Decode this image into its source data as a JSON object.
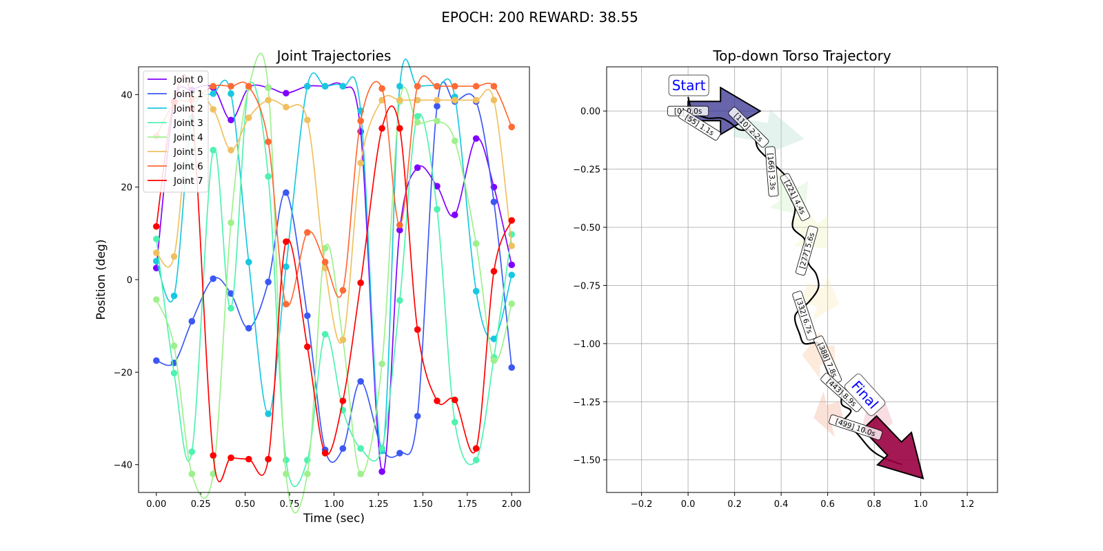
{
  "suptitle": "EPOCH: 200 REWARD:  38.55",
  "chart_data": [
    {
      "type": "line",
      "title": "Joint Trajectories",
      "xlabel": "Time (sec)",
      "ylabel": "Position (deg)",
      "xlim": [
        -0.1,
        2.1
      ],
      "ylim": [
        -46,
        46
      ],
      "xticks": [
        0.0,
        0.25,
        0.5,
        0.75,
        1.0,
        1.25,
        1.5,
        1.75,
        2.0
      ],
      "xtick_labels": [
        "0.00",
        "0.25",
        "0.50",
        "0.75",
        "1.00",
        "1.25",
        "1.50",
        "1.75",
        "2.00"
      ],
      "yticks": [
        -40,
        -20,
        0,
        20,
        40
      ],
      "ytick_labels": [
        "−40",
        "−20",
        "0",
        "20",
        "40"
      ],
      "grid": false,
      "legend_position": "top-left",
      "x": [
        0.0,
        0.1,
        0.2,
        0.32,
        0.42,
        0.52,
        0.63,
        0.73,
        0.85,
        0.95,
        1.05,
        1.15,
        1.27,
        1.37,
        1.47,
        1.58,
        1.68,
        1.8,
        1.9,
        2.0
      ],
      "series": [
        {
          "name": "Joint 0",
          "color": "#8000ff",
          "values": [
            2.5,
            38.0,
            41.0,
            41.5,
            34.5,
            41.5,
            41.5,
            40.3,
            41.8,
            41.8,
            41.8,
            32.0,
            -41.5,
            10.7,
            24.2,
            20.2,
            14.0,
            30.5,
            20.0,
            3.2
          ]
        },
        {
          "name": "Joint 1",
          "color": "#3b58f5",
          "values": [
            -17.5,
            -18.0,
            -9.0,
            0.2,
            -3.0,
            -10.5,
            -0.5,
            18.8,
            -7.8,
            -36.8,
            -36.5,
            -22.0,
            -36.5,
            -37.5,
            -29.5,
            37.5,
            38.5,
            38.5,
            16.8,
            -19.0
          ]
        },
        {
          "name": "Joint 2",
          "color": "#18c8e0",
          "values": [
            4.0,
            -3.5,
            35.0,
            40.2,
            40.2,
            3.8,
            -29.0,
            2.8,
            41.8,
            41.8,
            41.8,
            36.5,
            -37.0,
            41.8,
            41.8,
            41.8,
            39.5,
            -2.5,
            -12.8,
            1.0
          ]
        },
        {
          "name": "Joint 3",
          "color": "#4ff2b0",
          "values": [
            8.8,
            -20.2,
            -37.2,
            28.0,
            -6.2,
            41.5,
            22.3,
            -39.0,
            -39.0,
            -11.8,
            -28.2,
            -36.5,
            -36.5,
            -4.5,
            35.3,
            15.2,
            -30.8,
            -39.0,
            -16.8,
            9.8
          ]
        },
        {
          "name": "Joint 4",
          "color": "#9ef08c",
          "values": [
            -4.3,
            -14.3,
            -42.0,
            -42.0,
            12.3,
            41.5,
            41.5,
            -42.0,
            -42.0,
            6.8,
            -13.0,
            -42.0,
            -18.2,
            38.5,
            34.0,
            34.3,
            30.0,
            7.8,
            -17.5,
            -5.2
          ]
        },
        {
          "name": "Joint 5",
          "color": "#f0c060",
          "values": [
            5.8,
            5.0,
            38.8,
            36.8,
            28.0,
            35.0,
            38.8,
            37.3,
            34.5,
            2.5,
            -13.0,
            25.2,
            38.8,
            38.8,
            38.8,
            38.8,
            38.8,
            38.8,
            38.8,
            7.3
          ]
        },
        {
          "name": "Joint 6",
          "color": "#ff6a35",
          "values": [
            31.0,
            38.0,
            38.8,
            41.8,
            41.8,
            41.8,
            29.8,
            -5.3,
            10.2,
            3.8,
            -2.3,
            34.3,
            41.3,
            11.8,
            41.8,
            41.8,
            41.8,
            41.8,
            41.8,
            33.0
          ]
        },
        {
          "name": "Joint 7",
          "color": "#ff0000",
          "values": [
            11.5,
            38.5,
            37.0,
            -38.0,
            -38.5,
            -38.8,
            -38.8,
            8.2,
            -14.5,
            -37.5,
            -26.2,
            -0.7,
            32.7,
            32.7,
            -10.8,
            -26.2,
            -26.0,
            -36.5,
            1.8,
            12.8
          ]
        }
      ]
    },
    {
      "type": "line",
      "title": "Top-down Torso Trajectory",
      "xlim": [
        -0.35,
        1.33
      ],
      "ylim": [
        -1.64,
        0.19
      ],
      "xticks": [
        -0.2,
        0.0,
        0.2,
        0.4,
        0.6,
        0.8,
        1.0,
        1.2
      ],
      "xtick_labels": [
        "−0.2",
        "0.0",
        "0.2",
        "0.4",
        "0.6",
        "0.8",
        "1.0",
        "1.2"
      ],
      "yticks": [
        0.0,
        -0.25,
        -0.5,
        -0.75,
        -1.0,
        -1.25,
        -1.5
      ],
      "ytick_labels": [
        "0.00",
        "−0.25",
        "−0.50",
        "−0.75",
        "−1.00",
        "−1.25",
        "−1.50"
      ],
      "grid": true,
      "path": {
        "x": [
          0.0,
          0.02,
          0.08,
          0.14,
          0.18,
          0.22,
          0.28,
          0.3,
          0.36,
          0.42,
          0.45,
          0.44,
          0.46,
          0.45,
          0.5,
          0.5,
          0.52,
          0.55,
          0.56,
          0.52,
          0.46,
          0.48,
          0.5,
          0.56,
          0.58,
          0.6,
          0.62,
          0.66,
          0.66,
          0.7,
          0.66,
          0.68,
          0.72,
          0.78,
          0.82,
          0.86,
          0.92
        ],
        "y": [
          0.06,
          0.0,
          -0.03,
          -0.03,
          -0.05,
          -0.08,
          -0.09,
          -0.16,
          -0.22,
          -0.28,
          -0.33,
          -0.37,
          -0.42,
          -0.5,
          -0.55,
          -0.6,
          -0.66,
          -0.7,
          -0.76,
          -0.82,
          -0.88,
          -0.96,
          -1.0,
          -1.0,
          -1.07,
          -1.12,
          -1.16,
          -1.2,
          -1.26,
          -1.29,
          -1.34,
          -1.36,
          -1.38,
          -1.45,
          -1.48,
          -1.5,
          -1.52
        ]
      },
      "path_color": "#000000",
      "markers": [
        {
          "label": "[0] 0.0s",
          "x": 0.0,
          "y": 0.0
        },
        {
          "label": "[55] 1.1s",
          "x": 0.05,
          "y": -0.06
        },
        {
          "label": "[110] 2.2s",
          "x": 0.26,
          "y": -0.07
        },
        {
          "label": "[166] 3.3s",
          "x": 0.36,
          "y": -0.26
        },
        {
          "label": "[221] 4.4s",
          "x": 0.46,
          "y": -0.37
        },
        {
          "label": "[277] 5.6s",
          "x": 0.51,
          "y": -0.6
        },
        {
          "label": "[332] 6.7s",
          "x": 0.5,
          "y": -0.88
        },
        {
          "label": "[388] 7.8s",
          "x": 0.6,
          "y": -1.07
        },
        {
          "label": "[443] 8.9s",
          "x": 0.66,
          "y": -1.21
        },
        {
          "label": "[499] 10.0s",
          "x": 0.72,
          "y": -1.36
        }
      ],
      "start": {
        "label": "Start",
        "x": 0.0,
        "y": 0.11
      },
      "final": {
        "label": "Final",
        "x": 0.76,
        "y": -1.22
      },
      "heading_arrows": [
        {
          "x": 0.0,
          "y": 0.0,
          "dx": 0.31,
          "dy": 0.0,
          "color": "#2e2a8c",
          "alpha": 0.72
        },
        {
          "x": 0.2,
          "y": -0.07,
          "dx": 0.3,
          "dy": -0.05,
          "color": "#a8d8c8",
          "alpha": 0.3
        },
        {
          "x": 0.38,
          "y": -0.28,
          "dx": 0.12,
          "dy": -0.17,
          "color": "#c0e8b0",
          "alpha": 0.28
        },
        {
          "x": 0.47,
          "y": -0.45,
          "dx": 0.13,
          "dy": -0.14,
          "color": "#e8f0a8",
          "alpha": 0.28
        },
        {
          "x": 0.5,
          "y": -0.78,
          "dx": 0.15,
          "dy": -0.05,
          "color": "#f8e4a8",
          "alpha": 0.3
        },
        {
          "x": 0.63,
          "y": -1.05,
          "dx": -0.14,
          "dy": 0.0,
          "color": "#f8b888",
          "alpha": 0.3
        },
        {
          "x": 0.66,
          "y": -1.29,
          "dx": -0.12,
          "dy": -0.03,
          "color": "#f0a080",
          "alpha": 0.3
        },
        {
          "x": 0.76,
          "y": -1.31,
          "dx": 0.12,
          "dy": -0.03,
          "color": "#e890a0",
          "alpha": 0.3
        },
        {
          "x": 0.78,
          "y": -1.34,
          "dx": 0.23,
          "dy": -0.24,
          "color": "#9a0040",
          "alpha": 0.9
        }
      ]
    }
  ]
}
